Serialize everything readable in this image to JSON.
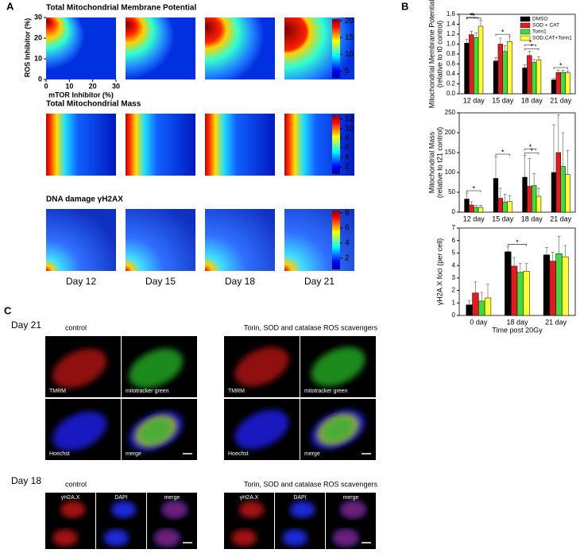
{
  "panel_a": {
    "label": "A",
    "y_label": "ROS Inhibitor (%)",
    "x_label": "mTOR Inhibitor (%)",
    "xticks": [
      0,
      10,
      20,
      30
    ],
    "yticks": [
      0,
      10,
      20,
      30
    ],
    "days": [
      "Day 12",
      "Day 15",
      "Day 18",
      "Day 21"
    ],
    "heatmaps": [
      {
        "title": "Total Mitochondrial Membrane Potential",
        "clim": [
          3,
          20.5
        ],
        "colorbar_ticks": [
          5,
          10,
          15,
          20
        ]
      },
      {
        "title": "Total Mitochondrial Mass",
        "clim": [
          0.5,
          12.8
        ],
        "colorbar_ticks": [
          2,
          4,
          6,
          8,
          10,
          12
        ]
      },
      {
        "title": "DNA damage γH2AX",
        "clim": [
          0.5,
          8.3
        ],
        "colorbar_ticks": [
          2,
          4,
          6,
          8
        ]
      }
    ]
  },
  "panel_b_label": "B",
  "chart_data": [
    {
      "type": "bar",
      "ylabel": [
        "Mitochondrial Membrane Potential",
        "(relative to t0 control)"
      ],
      "categories": [
        "12 day",
        "15 day",
        "18 day",
        "21 day"
      ],
      "ylim": [
        0,
        1.6
      ],
      "yticks": [
        {
          "value": 0,
          "label": "0.0"
        },
        {
          "value": 0.2,
          "label": "0.2"
        },
        {
          "value": 0.4,
          "label": "0.4"
        },
        {
          "value": 0.6,
          "label": "0.6"
        },
        {
          "value": 0.8,
          "label": "0.8"
        },
        {
          "value": 1,
          "label": "1.0"
        },
        {
          "value": 1.2,
          "label": "1.2"
        },
        {
          "value": 1.4,
          "label": "1.4"
        },
        {
          "value": 1.6,
          "label": "1.6"
        }
      ],
      "legend": "upper right",
      "series": [
        {
          "name": "DMSO",
          "color": "#000000",
          "values": [
            1.02,
            0.66,
            0.52,
            0.28
          ],
          "errors": [
            0.08,
            0.07,
            0.06,
            0.03
          ]
        },
        {
          "name": "SOD + CAT",
          "color": "#e8191c",
          "values": [
            1.19,
            1.0,
            0.77,
            0.43
          ],
          "errors": [
            0.07,
            0.12,
            0.09,
            0.05
          ]
        },
        {
          "name": "Torin1",
          "color": "#3ddc3a",
          "values": [
            1.13,
            0.85,
            0.63,
            0.43
          ],
          "errors": [
            0.1,
            0.12,
            0.06,
            0.04
          ]
        },
        {
          "name": "SOD,CAT+Torin1",
          "color": "#ffff33",
          "values": [
            1.36,
            1.05,
            0.68,
            0.42
          ],
          "errors": [
            0.12,
            0.1,
            0.06,
            0.04
          ]
        }
      ],
      "annotations": [
        {
          "text": "*",
          "category": 0
        },
        {
          "text": "*",
          "category": 0
        },
        {
          "text": "*",
          "category": 0
        },
        {
          "text": "*",
          "category": 1
        },
        {
          "text": "*",
          "category": 2
        },
        {
          "text": "*",
          "category": 2
        },
        {
          "text": "*",
          "category": 3
        }
      ]
    },
    {
      "type": "bar",
      "ylabel": [
        "Mitochondrial Mass",
        "(relative to t21 control)"
      ],
      "categories": [
        "12 day",
        "15 day",
        "18 day",
        "21 day"
      ],
      "ylim": [
        0,
        250
      ],
      "yticks": [
        0,
        50,
        100,
        150,
        200,
        250
      ],
      "series": [
        {
          "name": "DMSO",
          "color": "#000000",
          "values": [
            33,
            85,
            88,
            100
          ],
          "errors": [
            15,
            55,
            55,
            120
          ]
        },
        {
          "name": "SOD + CAT",
          "color": "#e8191c",
          "values": [
            18,
            35,
            65,
            150
          ],
          "errors": [
            8,
            25,
            70,
            95
          ]
        },
        {
          "name": "Torin1",
          "color": "#3ddc3a",
          "values": [
            12,
            25,
            67,
            115
          ],
          "errors": [
            5,
            20,
            30,
            85
          ]
        },
        {
          "name": "SOD,CAT+Torin1",
          "color": "#ffff33",
          "values": [
            12,
            27,
            40,
            95
          ],
          "errors": [
            5,
            15,
            20,
            60
          ]
        }
      ],
      "annotations": [
        {
          "text": "*",
          "category": 0
        },
        {
          "text": "*",
          "category": 1
        },
        {
          "text": "*",
          "category": 2
        },
        {
          "text": "*",
          "category": 2
        }
      ]
    },
    {
      "type": "bar",
      "ylabel": [
        "γH2A.X foci (per cell)"
      ],
      "xlabel": "Time post 20Gy",
      "categories": [
        "0 day",
        "18 day",
        "21 day"
      ],
      "ylim": [
        0,
        7
      ],
      "yticks": [
        0,
        1,
        2,
        3,
        4,
        5,
        6,
        7
      ],
      "series": [
        {
          "name": "DMSO",
          "color": "#000000",
          "values": [
            0.85,
            5.1,
            4.85
          ],
          "errors": [
            0.35,
            0.4,
            0.6
          ]
        },
        {
          "name": "SOD + CAT",
          "color": "#e8191c",
          "values": [
            1.8,
            3.95,
            4.35
          ],
          "errors": [
            0.9,
            0.7,
            0.7
          ]
        },
        {
          "name": "Torin1",
          "color": "#3ddc3a",
          "values": [
            1.15,
            3.45,
            4.95
          ],
          "errors": [
            0.7,
            0.7,
            1.4
          ]
        },
        {
          "name": "SOD,CAT+Torin1",
          "color": "#ffff33",
          "values": [
            1.4,
            3.55,
            4.7
          ],
          "errors": [
            1.1,
            0.6,
            0.9
          ]
        }
      ],
      "annotations": [
        {
          "text": "*",
          "category": 1
        }
      ]
    }
  ],
  "panel_c": {
    "label": "C",
    "rows": [
      {
        "day": "Day 21",
        "groups": [
          {
            "title": "control",
            "images": [
              "TMRM",
              "mitotracker green",
              "Hoechst",
              "merge"
            ]
          },
          {
            "title": "Torin, SOD and catalase ROS scavengers",
            "images": [
              "TMRM",
              "mitotracker green",
              "Hoechst",
              "merge"
            ]
          }
        ]
      },
      {
        "day": "Day 18",
        "groups": [
          {
            "title": "control",
            "images": [
              "γH2A.X",
              "DAPI",
              "merge"
            ]
          },
          {
            "title": "Torin, SOD and catalase ROS scavengers",
            "images": [
              "γH2A.X",
              "DAPI",
              "merge"
            ]
          }
        ]
      }
    ]
  }
}
